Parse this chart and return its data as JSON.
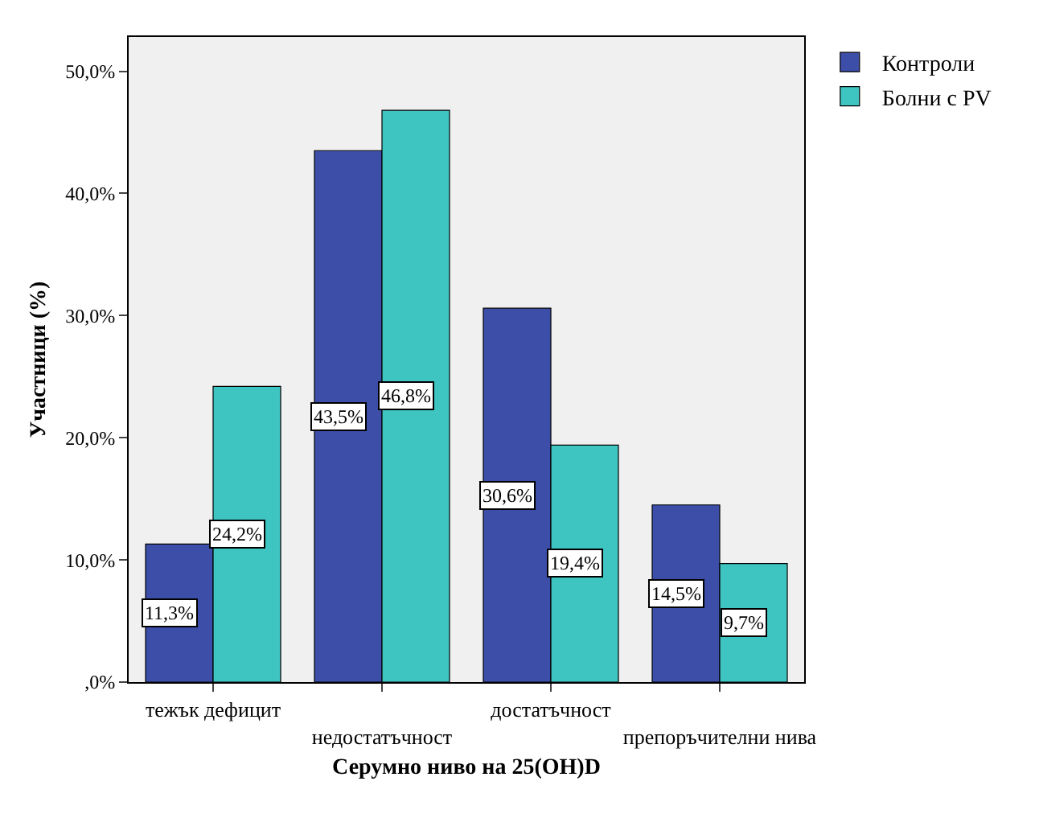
{
  "chart_data": {
    "type": "bar",
    "xlabel": "Серумно ниво на 25(OH)D",
    "ylabel": "Участници (%)",
    "categories": [
      "тежък дефицит",
      "недостатъчност",
      "достатъчност",
      "препоръчителни нива"
    ],
    "series": [
      {
        "name": "Контроли",
        "color": "#3d4ea8",
        "values": [
          11.3,
          43.5,
          30.6,
          14.5
        ],
        "value_labels": [
          "11,3%",
          "43,5%",
          "30,6%",
          "14,5%"
        ]
      },
      {
        "name": "Болни с PV",
        "color": "#3fc5c1",
        "values": [
          24.2,
          46.8,
          19.4,
          9.7
        ],
        "value_labels": [
          "24,2%",
          "46,8%",
          "19,4%",
          "9,7%"
        ]
      }
    ],
    "ylim": [
      0,
      52.8
    ],
    "yticks": [
      {
        "value": 0,
        "label": ",0%"
      },
      {
        "value": 10,
        "label": "10,0%"
      },
      {
        "value": 20,
        "label": "20,0%"
      },
      {
        "value": 30,
        "label": "30,0%"
      },
      {
        "value": 40,
        "label": "40,0%"
      },
      {
        "value": 50,
        "label": "50,0%"
      }
    ],
    "grid": false,
    "legend": "top right"
  }
}
